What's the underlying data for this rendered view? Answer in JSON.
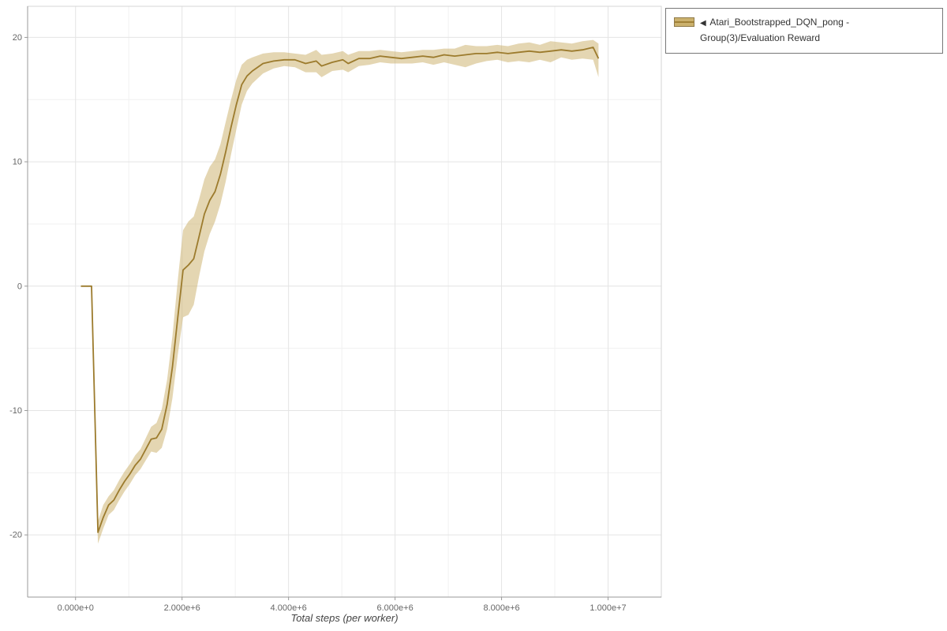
{
  "legend": {
    "collapse_icon": "◀",
    "label": "Atari_Bootstrapped_DQN_pong - Group(3)/Evaluation Reward"
  },
  "chart_data": {
    "type": "line",
    "title": "",
    "xlabel": "Total steps (per worker)",
    "ylabel": "",
    "xlim": [
      -900000,
      11000000
    ],
    "ylim": [
      -25,
      22.5
    ],
    "grid": true,
    "legend_position": "top-right-outside",
    "x_ticks": {
      "values": [
        0,
        2000000,
        4000000,
        6000000,
        8000000,
        10000000
      ],
      "labels": [
        "0.000e+0",
        "2.000e+6",
        "4.000e+6",
        "6.000e+6",
        "8.000e+6",
        "1.000e+7"
      ]
    },
    "y_ticks": {
      "values": [
        -20,
        -10,
        0,
        10,
        20
      ],
      "labels": [
        "-20",
        "-10",
        "0",
        "10",
        "20"
      ]
    },
    "x_minor": [
      1000000,
      3000000,
      5000000,
      7000000,
      9000000
    ],
    "y_minor": [
      -15,
      -5,
      5,
      15
    ],
    "colors": {
      "line": "#9c7b2d",
      "band": "#c9ad66",
      "grid": "#e4e4e4",
      "grid_minor": "#f1f1f1",
      "axis_text": "#666666",
      "spine": "#999999",
      "frame": "#d6d6d6"
    },
    "series": [
      {
        "name": "Atari_Bootstrapped_DQN_pong - Group(3)/Evaluation Reward",
        "x": [
          100000,
          300000,
          420000,
          520000,
          620000,
          720000,
          820000,
          920000,
          1020000,
          1120000,
          1220000,
          1320000,
          1420000,
          1520000,
          1620000,
          1720000,
          1820000,
          1920000,
          2020000,
          2120000,
          2220000,
          2320000,
          2420000,
          2520000,
          2620000,
          2720000,
          2820000,
          2920000,
          3020000,
          3120000,
          3220000,
          3320000,
          3520000,
          3720000,
          3920000,
          4120000,
          4320000,
          4520000,
          4620000,
          4820000,
          5020000,
          5120000,
          5320000,
          5520000,
          5720000,
          5920000,
          6120000,
          6320000,
          6520000,
          6720000,
          6920000,
          7120000,
          7320000,
          7520000,
          7720000,
          7920000,
          8120000,
          8320000,
          8520000,
          8720000,
          8920000,
          9120000,
          9320000,
          9520000,
          9720000,
          9820000
        ],
        "mean": [
          0,
          0,
          -19.8,
          -18.6,
          -17.6,
          -17.2,
          -16.4,
          -15.7,
          -15.1,
          -14.4,
          -13.9,
          -13.1,
          -12.3,
          -12.2,
          -11.5,
          -9.5,
          -6.5,
          -2.5,
          1.3,
          1.7,
          2.2,
          4.0,
          5.8,
          6.9,
          7.6,
          9.0,
          10.8,
          12.8,
          14.6,
          16.2,
          16.9,
          17.3,
          17.9,
          18.1,
          18.2,
          18.2,
          17.9,
          18.1,
          17.7,
          18.0,
          18.2,
          17.9,
          18.3,
          18.3,
          18.5,
          18.4,
          18.3,
          18.4,
          18.5,
          18.4,
          18.6,
          18.5,
          18.6,
          18.7,
          18.7,
          18.8,
          18.7,
          18.8,
          18.9,
          18.8,
          18.9,
          19.0,
          18.9,
          19.0,
          19.2,
          18.3
        ],
        "lower": [
          0,
          0,
          -20.7,
          -19.5,
          -18.4,
          -18.0,
          -17.2,
          -16.5,
          -15.9,
          -15.2,
          -14.7,
          -14.0,
          -13.3,
          -13.4,
          -13.0,
          -11.5,
          -9.0,
          -5.5,
          -2.5,
          -2.3,
          -1.5,
          0.8,
          2.8,
          4.2,
          5.2,
          6.6,
          8.4,
          10.6,
          12.6,
          14.6,
          15.7,
          16.3,
          17.1,
          17.5,
          17.7,
          17.6,
          17.2,
          17.2,
          16.8,
          17.3,
          17.4,
          17.2,
          17.7,
          17.8,
          18.0,
          17.9,
          17.9,
          17.9,
          18.0,
          17.8,
          18.0,
          17.8,
          17.6,
          17.9,
          18.1,
          18.2,
          18.0,
          18.1,
          18.0,
          18.2,
          18.0,
          18.4,
          18.2,
          18.3,
          18.2,
          16.8
        ],
        "upper": [
          0,
          0,
          -18.9,
          -17.6,
          -16.9,
          -16.4,
          -15.6,
          -14.9,
          -14.3,
          -13.6,
          -13.1,
          -12.2,
          -11.3,
          -11.0,
          -9.9,
          -7.5,
          -4.0,
          0.5,
          4.5,
          5.2,
          5.6,
          7.0,
          8.6,
          9.6,
          10.2,
          11.4,
          13.2,
          15.0,
          16.6,
          17.8,
          18.2,
          18.4,
          18.7,
          18.8,
          18.8,
          18.7,
          18.6,
          19.0,
          18.6,
          18.7,
          18.9,
          18.6,
          18.9,
          18.9,
          19.0,
          18.9,
          18.8,
          18.9,
          19.0,
          19.0,
          19.1,
          19.1,
          19.4,
          19.3,
          19.3,
          19.4,
          19.3,
          19.5,
          19.6,
          19.4,
          19.7,
          19.6,
          19.5,
          19.7,
          19.8,
          19.5
        ]
      }
    ]
  }
}
